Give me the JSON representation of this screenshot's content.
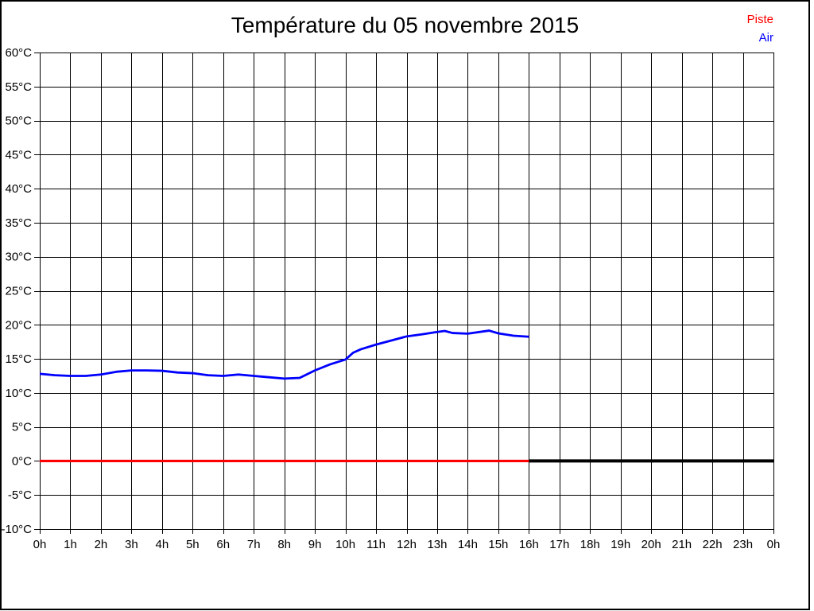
{
  "title": "Température du 05 novembre 2015",
  "legend": {
    "position": "top-right",
    "items": [
      {
        "label": "Piste",
        "color": "#ff0000"
      },
      {
        "label": "Air",
        "color": "#0000ff"
      }
    ]
  },
  "chart_data": {
    "type": "line",
    "title": "Température du 05 novembre 2015",
    "xlabel": "",
    "ylabel": "",
    "xlim": [
      0,
      24
    ],
    "ylim": [
      -10,
      60
    ],
    "x_tick_step_hours": 1,
    "y_tick_step_deg": 5,
    "grid": true,
    "x_tick_labels": [
      "0h",
      "1h",
      "2h",
      "3h",
      "4h",
      "5h",
      "6h",
      "7h",
      "8h",
      "9h",
      "10h",
      "11h",
      "12h",
      "13h",
      "14h",
      "15h",
      "16h",
      "17h",
      "18h",
      "19h",
      "20h",
      "21h",
      "22h",
      "23h",
      "0h"
    ],
    "y_tick_labels": [
      "60°C",
      "55°C",
      "50°C",
      "45°C",
      "40°C",
      "35°C",
      "30°C",
      "25°C",
      "20°C",
      "15°C",
      "10°C",
      "5°C",
      "0°C",
      "-5°C",
      "-10°C"
    ],
    "series": [
      {
        "name": "zero-line-after-16h",
        "color": "#000000",
        "thickness": 4,
        "x": [
          16,
          24
        ],
        "values": [
          0,
          0
        ]
      },
      {
        "name": "Piste",
        "color": "#ff0000",
        "thickness": 3.2,
        "x": [
          0,
          16
        ],
        "values": [
          0,
          0
        ]
      },
      {
        "name": "Air",
        "color": "#0000ff",
        "thickness": 2.8,
        "x": [
          0,
          0.5,
          1,
          1.5,
          2,
          2.5,
          3,
          3.5,
          4,
          4.5,
          5,
          5.5,
          6,
          6.5,
          7,
          7.5,
          8,
          8.5,
          9,
          9.5,
          10,
          10.25,
          10.5,
          11,
          11.5,
          12,
          12.5,
          13,
          13.25,
          13.5,
          14,
          14.7,
          15,
          15.5,
          16
        ],
        "values": [
          12.8,
          12.6,
          12.5,
          12.5,
          12.7,
          13.1,
          13.3,
          13.3,
          13.25,
          13.0,
          12.9,
          12.6,
          12.5,
          12.7,
          12.5,
          12.3,
          12.1,
          12.2,
          13.3,
          14.2,
          14.9,
          15.9,
          16.4,
          17.1,
          17.7,
          18.3,
          18.6,
          18.95,
          19.1,
          18.8,
          18.7,
          19.15,
          18.75,
          18.4,
          18.25
        ]
      }
    ]
  }
}
